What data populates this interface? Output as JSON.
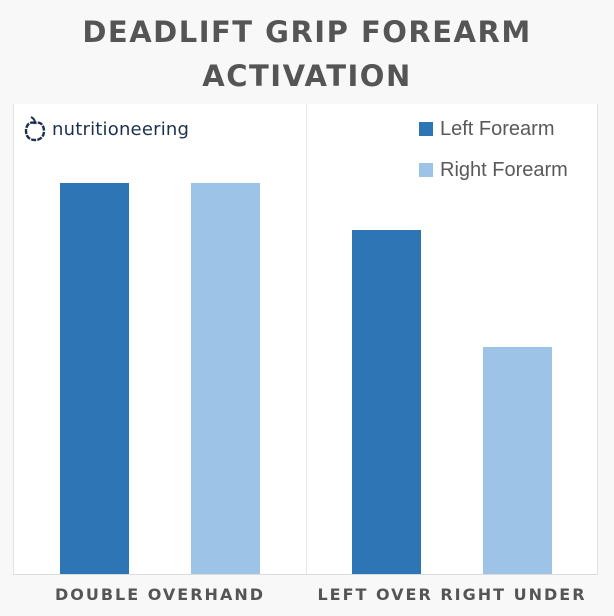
{
  "title_lines": [
    "DEADLIFT GRIP FOREARM",
    "ACTIVATION"
  ],
  "logo": {
    "text": "nutritioneering",
    "icon": "apple-outline-icon",
    "color": "#1b2f4e"
  },
  "colors": {
    "left_forearm": "#2e75b6",
    "right_forearm": "#9dc3e6",
    "title": "#555555",
    "background": "#f8f8f8",
    "panel": "#ffffff"
  },
  "legend": [
    {
      "label": "Left Forearm",
      "color": "#2e75b6"
    },
    {
      "label": "Right Forearm",
      "color": "#9dc3e6"
    }
  ],
  "chart_data": {
    "type": "bar",
    "title": "DEADLIFT GRIP FOREARM ACTIVATION",
    "categories": [
      "DOUBLE OVERHAND",
      "LEFT OVER RIGHT UNDER"
    ],
    "series": [
      {
        "name": "Left Forearm",
        "color": "#2e75b6",
        "values": [
          100,
          88
        ]
      },
      {
        "name": "Right Forearm",
        "color": "#9dc3e6",
        "values": [
          100,
          58
        ]
      }
    ],
    "xlabel": "",
    "ylabel": "",
    "ylim": [
      0,
      120
    ],
    "y_axis_shown": false,
    "grid": false,
    "legend_position": "top-right",
    "value_note": "relative activation (no axis shown; Double Overhand normalized to 100)"
  }
}
